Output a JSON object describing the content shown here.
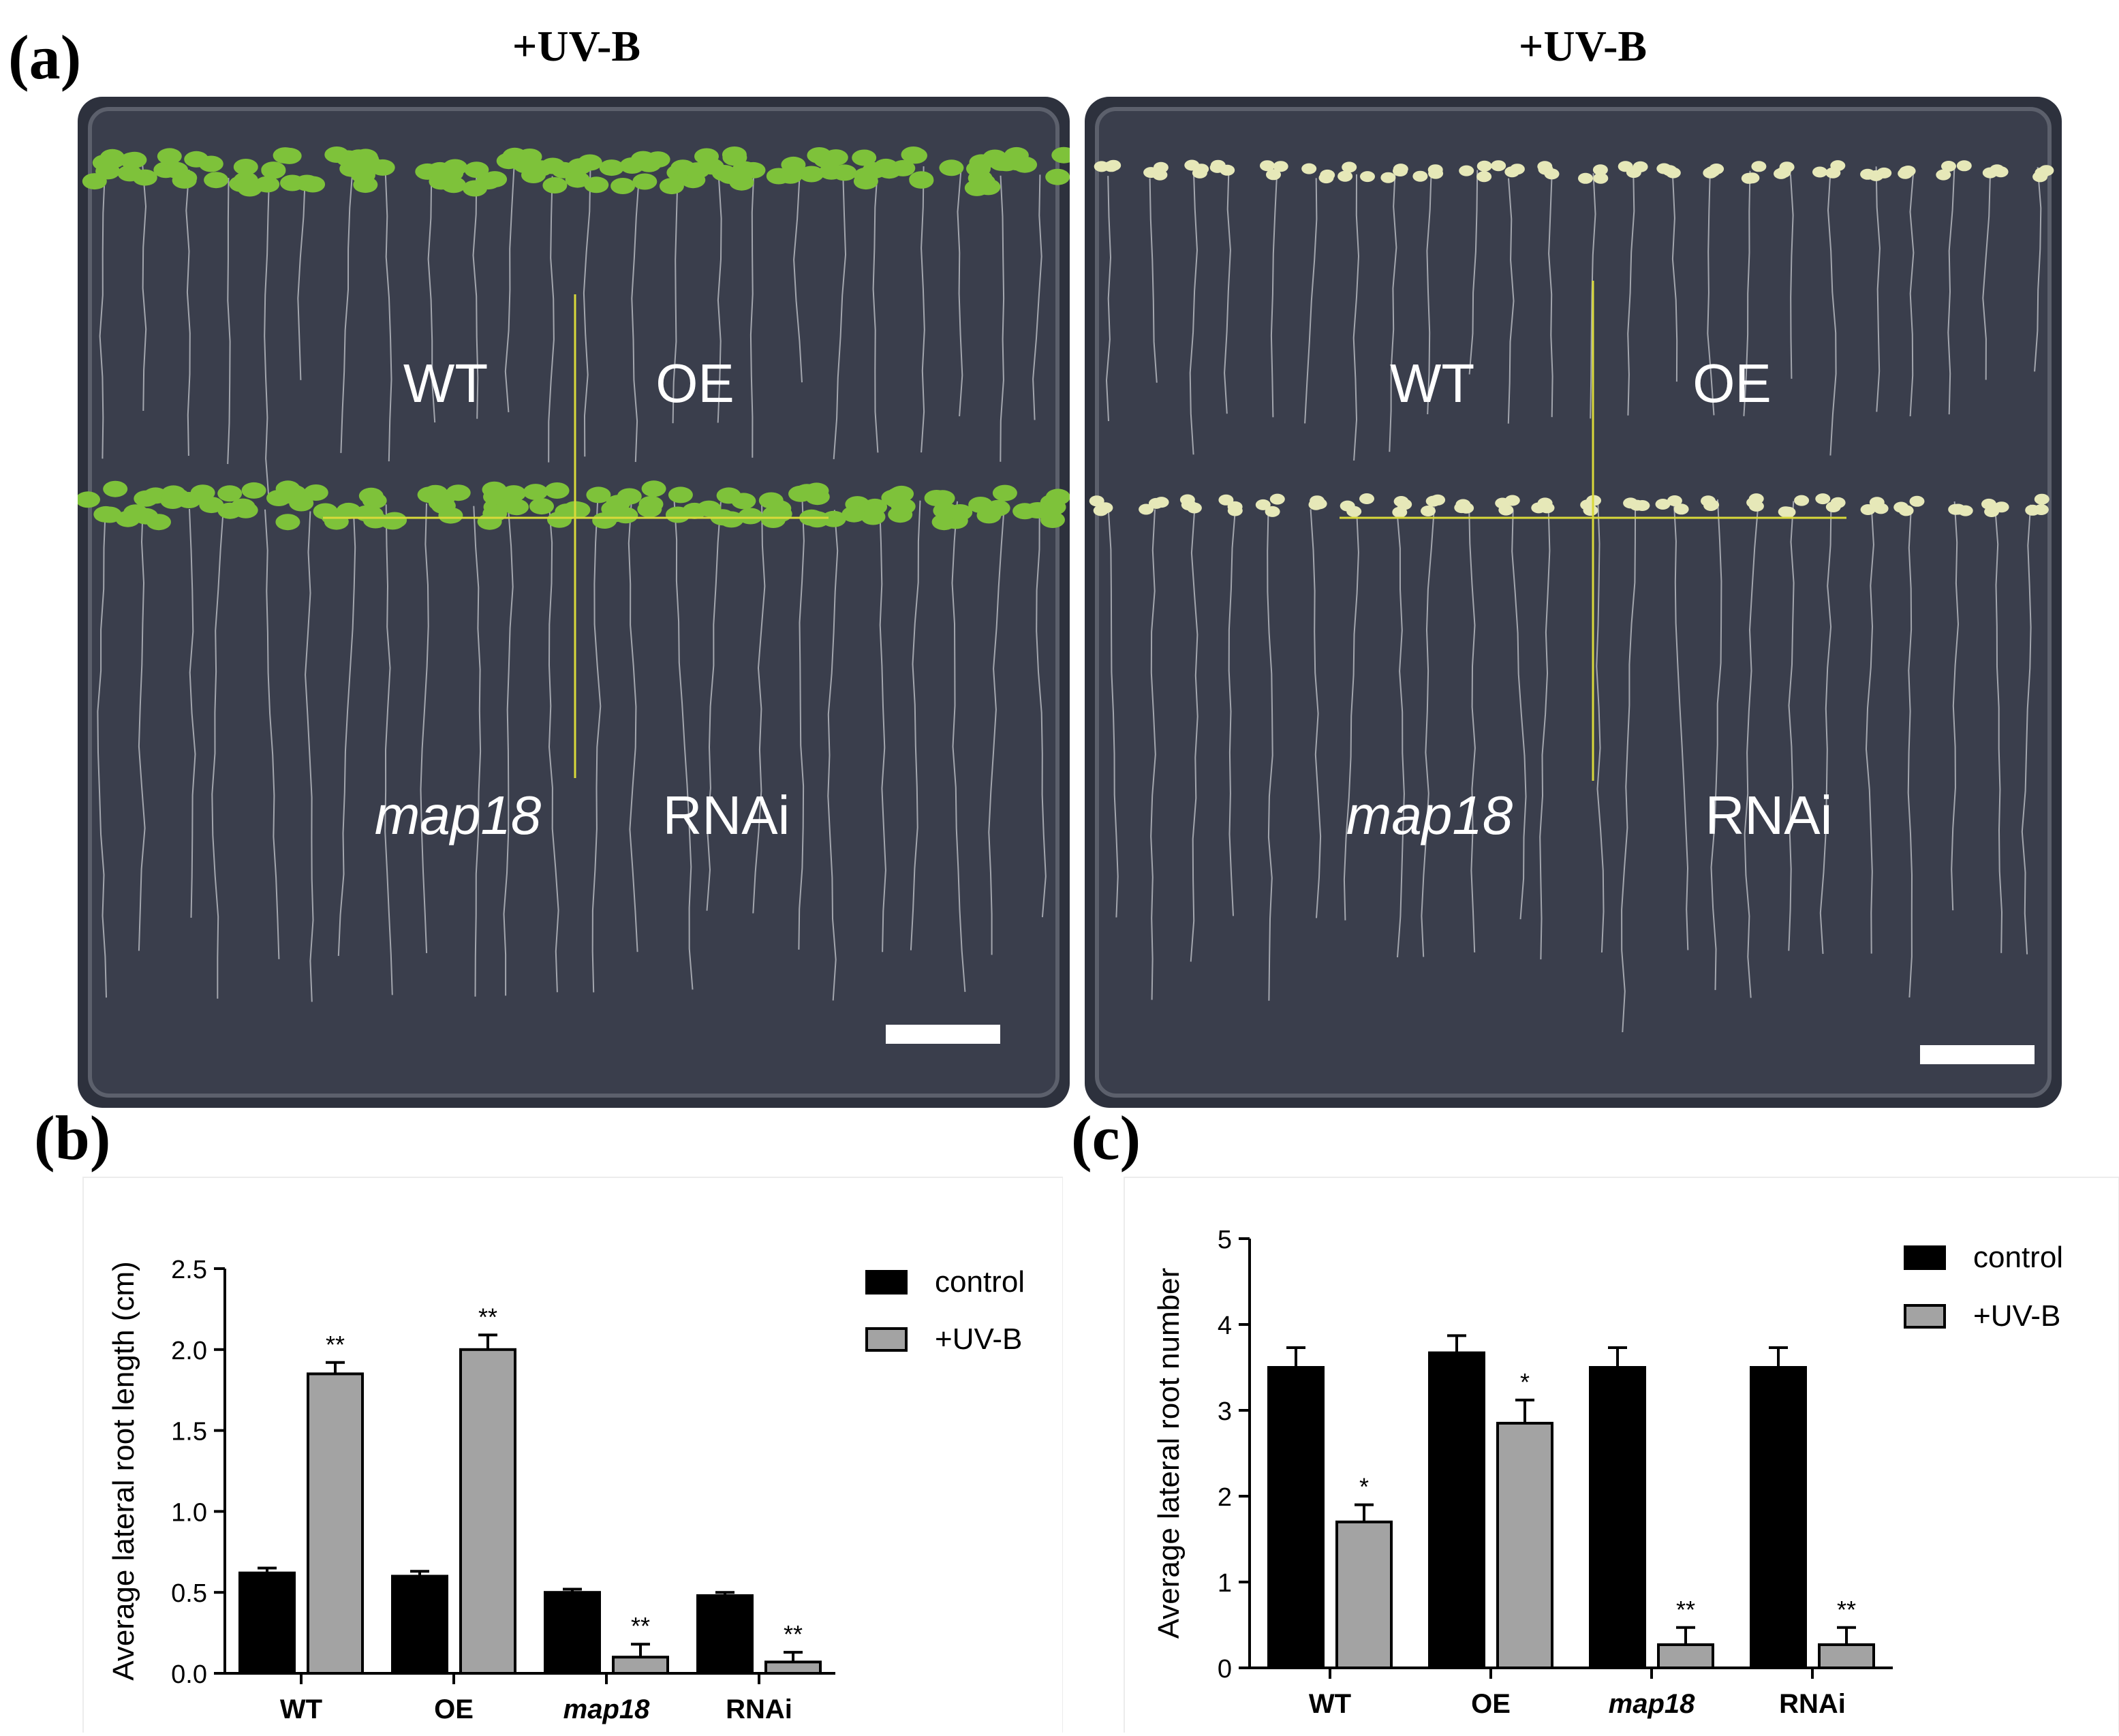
{
  "colors": {
    "control": "#000000",
    "uvb": "#a3a3a3",
    "plate_bg": "#3a3e4c",
    "divider": "#d9d93a",
    "healthy_leaf": "#7ec23a",
    "pale_leaf": "#e6e8b8"
  },
  "panel_a": {
    "letter": "(a)",
    "left_plate": {
      "title": "+UV-B",
      "quadrants": {
        "tl": "WT",
        "tr": "OE",
        "bl": "map18",
        "br": "RNAi"
      }
    },
    "right_plate": {
      "title": "+UV-B",
      "quadrants": {
        "tl": "WT",
        "tr": "OE",
        "bl": "map18",
        "br": "RNAi"
      }
    }
  },
  "panel_b": {
    "letter": "(b)"
  },
  "panel_c": {
    "letter": "(c)"
  },
  "chart_data": [
    {
      "type": "bar",
      "ylabel": "Average lateral root length (cm)",
      "xlabel": "",
      "categories": [
        "WT",
        "OE",
        "map18",
        "RNAi"
      ],
      "italic_categories": [
        "map18"
      ],
      "ylim": [
        0,
        2.5
      ],
      "yticks": [
        "0.0",
        "0.5",
        "1.0",
        "1.5",
        "2.0",
        "2.5"
      ],
      "series": [
        {
          "name": "control",
          "color": "#000000",
          "values": [
            0.62,
            0.6,
            0.5,
            0.48
          ],
          "errors": [
            0.03,
            0.03,
            0.02,
            0.02
          ],
          "sig": [
            "",
            "",
            "",
            ""
          ]
        },
        {
          "name": "+UV-B",
          "color": "#a3a3a3",
          "values": [
            1.85,
            2.0,
            0.1,
            0.07
          ],
          "errors": [
            0.07,
            0.09,
            0.08,
            0.06
          ],
          "sig": [
            "**",
            "**",
            "**",
            "**"
          ]
        }
      ],
      "legend_position": "top-right"
    },
    {
      "type": "bar",
      "ylabel": "Average lateral root number",
      "xlabel": "",
      "categories": [
        "WT",
        "OE",
        "map18",
        "RNAi"
      ],
      "italic_categories": [
        "map18"
      ],
      "ylim": [
        0,
        5
      ],
      "yticks": [
        "0",
        "1",
        "2",
        "3",
        "4",
        "5"
      ],
      "series": [
        {
          "name": "control",
          "color": "#000000",
          "values": [
            3.5,
            3.67,
            3.5,
            3.5
          ],
          "errors": [
            0.23,
            0.2,
            0.23,
            0.23
          ],
          "sig": [
            "",
            "",
            "",
            ""
          ]
        },
        {
          "name": "+UV-B",
          "color": "#a3a3a3",
          "values": [
            1.7,
            2.85,
            0.27,
            0.27
          ],
          "errors": [
            0.2,
            0.27,
            0.2,
            0.2
          ],
          "sig": [
            "*",
            "*",
            "**",
            "**"
          ]
        }
      ],
      "legend_position": "top-right"
    }
  ]
}
